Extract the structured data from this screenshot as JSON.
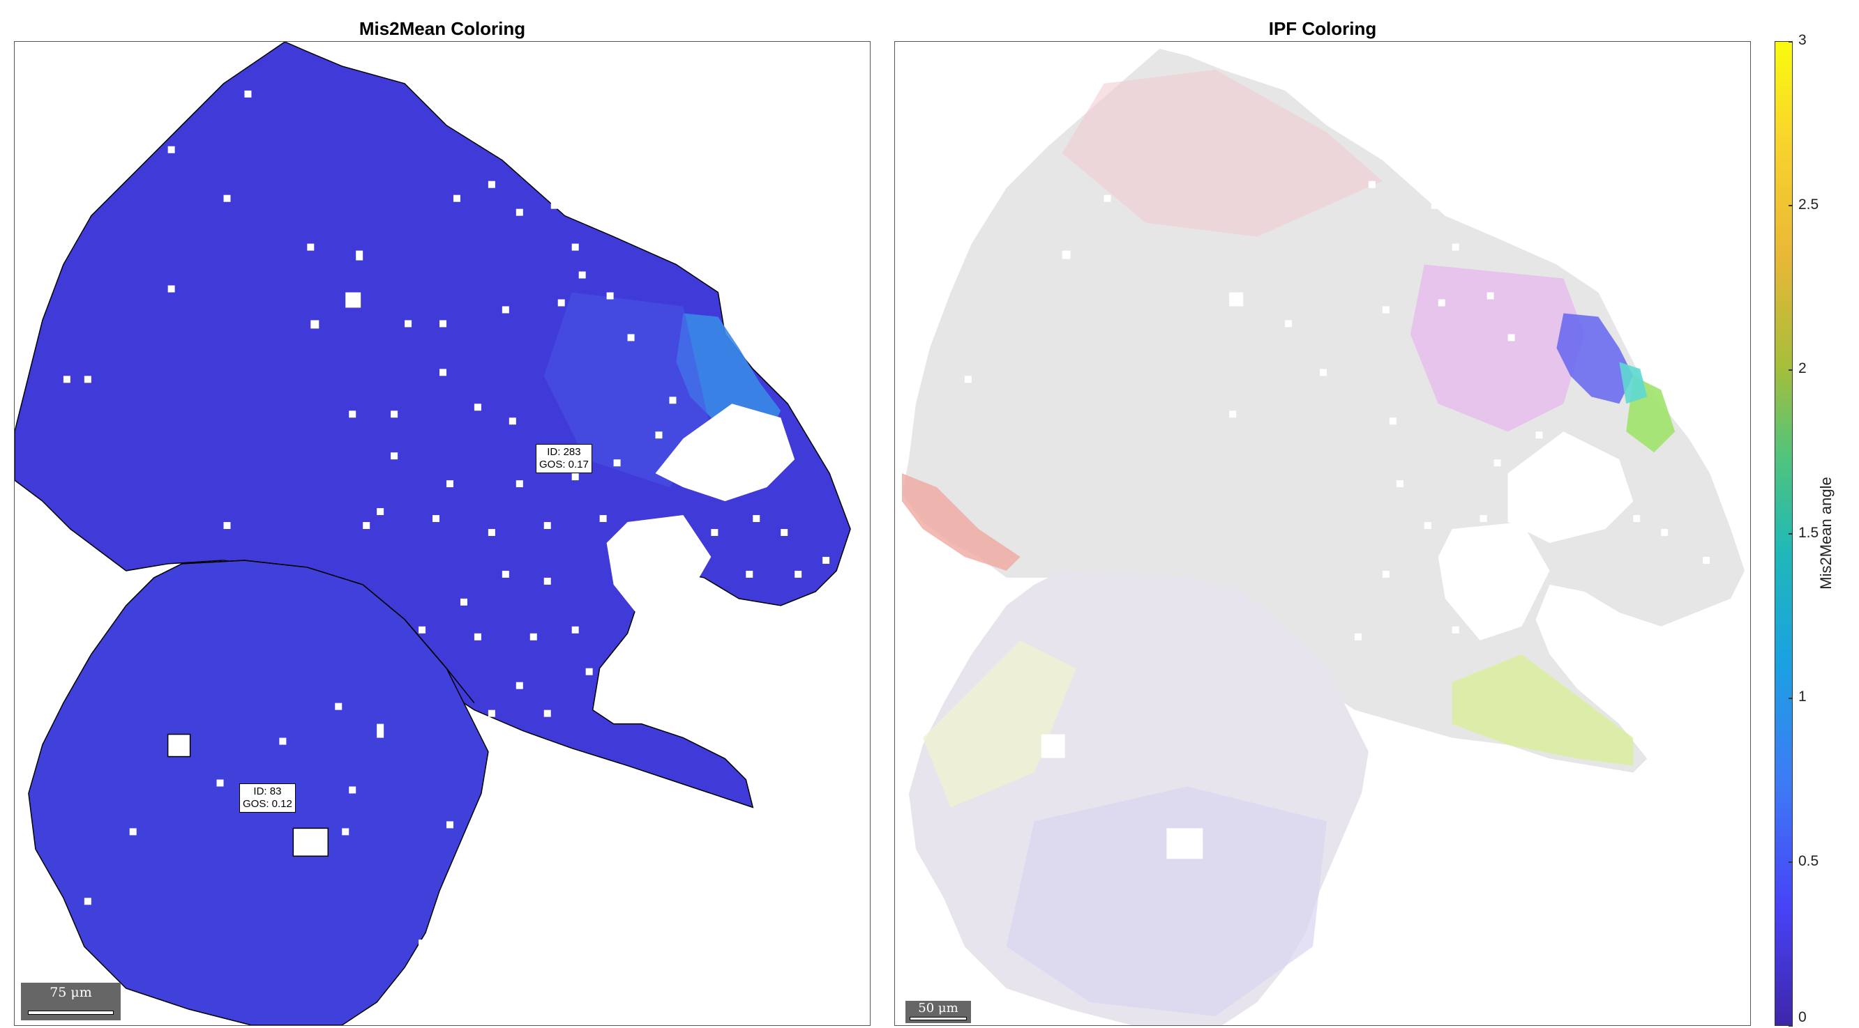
{
  "left_panel": {
    "title": "Mis2Mean Coloring",
    "labels": [
      {
        "id_text": "ID: 283",
        "gos_text": "GOS: 0.17"
      },
      {
        "id_text": "ID: 83",
        "gos_text": "GOS: 0.12"
      }
    ],
    "scalebar": "75 μm"
  },
  "right_panel": {
    "title": "IPF Coloring",
    "scalebar": "50 μm"
  },
  "colorbar": {
    "label": "Mis2Mean angle",
    "ticks": [
      "3",
      "2.5",
      "2",
      "1.5",
      "1",
      "0.5",
      "0"
    ],
    "range": [
      0,
      3
    ],
    "colormap": "parula"
  },
  "colors": {
    "grain_fill": "#3f3ad8",
    "grain_fill_light": "#4855e6",
    "high_mis_fill": "#3a8ae8",
    "boundary": "#000000",
    "ipf_base": "#e6e6e6",
    "ipf_pink": "#f2c9cf",
    "ipf_magenta": "#e8a2f0",
    "ipf_blue": "#6c6cf0",
    "ipf_green": "#9fe36b",
    "ipf_yellowgreen": "#d9ef9a"
  }
}
